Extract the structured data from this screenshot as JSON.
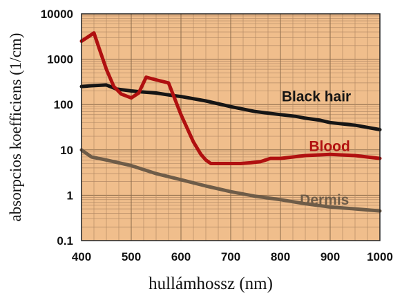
{
  "chart_data": {
    "type": "line",
    "title": "",
    "xlabel": "hullámhossz (nm)",
    "ylabel": "absorpcios koefficiens (1/cm)",
    "xlim": [
      400,
      1000
    ],
    "ylim": [
      0.1,
      10000
    ],
    "yscale": "log",
    "grid": true,
    "background_color": "#f0be8c",
    "x_tick_labels": [
      "400",
      "500",
      "600",
      "700",
      "800",
      "900",
      "1000"
    ],
    "y_tick_labels": [
      "0.1",
      "1",
      "10",
      "100",
      "1000",
      "10000"
    ],
    "series": [
      {
        "name": "Black hair",
        "color": "#151515",
        "x": [
          400,
          420,
          450,
          470,
          500,
          520,
          550,
          580,
          600,
          650,
          700,
          750,
          800,
          830,
          850,
          880,
          900,
          950,
          1000
        ],
        "y": [
          250,
          260,
          270,
          220,
          200,
          190,
          180,
          160,
          150,
          120,
          90,
          70,
          60,
          55,
          50,
          45,
          40,
          35,
          28
        ]
      },
      {
        "name": "Blood",
        "color": "#b01010",
        "x": [
          400,
          415,
          425,
          435,
          450,
          465,
          480,
          500,
          515,
          530,
          550,
          575,
          600,
          625,
          640,
          650,
          660,
          680,
          700,
          720,
          740,
          760,
          780,
          800,
          850,
          900,
          950,
          1000
        ],
        "y": [
          2500,
          3200,
          3800,
          1800,
          600,
          250,
          170,
          140,
          180,
          400,
          350,
          300,
          60,
          15,
          8,
          6,
          5,
          5,
          5,
          5,
          5.2,
          5.5,
          6.5,
          6.5,
          7.5,
          8,
          7.5,
          6.5
        ]
      },
      {
        "name": "Dermis",
        "color": "#6e5c48",
        "x": [
          400,
          420,
          450,
          500,
          550,
          600,
          650,
          700,
          750,
          800,
          850,
          900,
          950,
          1000
        ],
        "y": [
          10,
          7,
          6,
          4.5,
          3,
          2.2,
          1.6,
          1.2,
          0.95,
          0.8,
          0.65,
          0.55,
          0.5,
          0.45
        ]
      }
    ]
  }
}
